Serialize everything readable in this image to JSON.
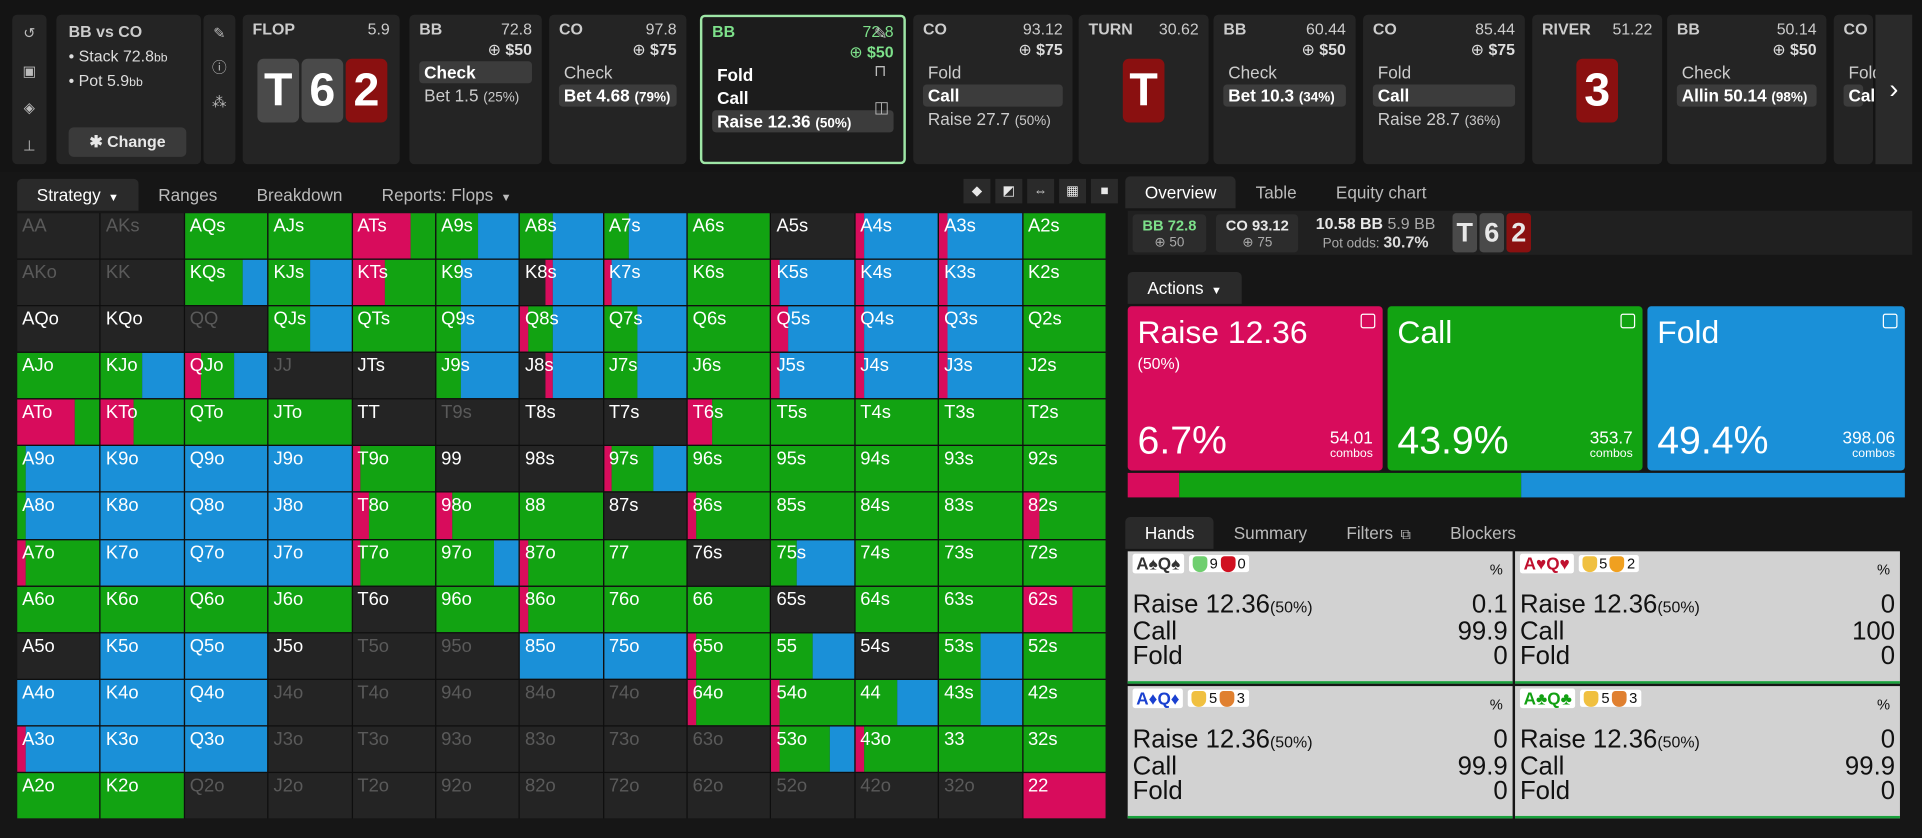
{
  "spot": {
    "title": "BB vs CO",
    "stack": "Stack 72.8",
    "pot": "Pot 5.9",
    "unit": "bb",
    "change": "Change"
  },
  "cards": [
    {
      "name": "FLOP",
      "val": "5.9"
    },
    {
      "name": "BB",
      "val": "72.8",
      "bet": "$50",
      "acts": [
        "Check",
        "Bet 1.5"
      ],
      "pcts": [
        "",
        "(25%)"
      ]
    },
    {
      "name": "CO",
      "val": "97.8",
      "bet": "$75",
      "acts": [
        "Check",
        "Bet 4.68"
      ],
      "pcts": [
        "",
        "(79%)"
      ]
    },
    {
      "name": "BB",
      "val": "72.8",
      "bet": "$50",
      "acts": [
        "Fold",
        "Call",
        "Raise 12.36"
      ],
      "pcts": [
        "",
        "",
        "(50%)"
      ]
    },
    {
      "name": "CO",
      "val": "93.12",
      "bet": "$75",
      "acts": [
        "Fold",
        "Call",
        "Raise 27.7"
      ],
      "pcts": [
        "",
        "",
        "(50%)"
      ]
    },
    {
      "name": "TURN",
      "val": "30.62"
    },
    {
      "name": "BB",
      "val": "60.44",
      "bet": "$50",
      "acts": [
        "Check",
        "Bet 10.3"
      ],
      "pcts": [
        "",
        "(34%)"
      ]
    },
    {
      "name": "CO",
      "val": "85.44",
      "bet": "$75",
      "acts": [
        "Fold",
        "Call",
        "Raise 28.7"
      ],
      "pcts": [
        "",
        "",
        "(36%)"
      ]
    },
    {
      "name": "RIVER",
      "val": "51.22"
    },
    {
      "name": "BB",
      "val": "50.14",
      "bet": "$50",
      "acts": [
        "Check",
        "Allin 50.14"
      ],
      "pcts": [
        "",
        "(98%)"
      ]
    },
    {
      "name": "CO",
      "acts": [
        "Fold",
        "Call"
      ]
    }
  ],
  "board": {
    "flop": [
      "T",
      "6",
      "2"
    ],
    "turn": "T",
    "river": "3"
  },
  "left_tabs": [
    "Strategy",
    "Ranges",
    "Breakdown",
    "Reports: Flops"
  ],
  "right_tabs": [
    "Overview",
    "Table",
    "Equity chart"
  ],
  "overview": {
    "bb": "BB 72.8",
    "bb_sub": "50",
    "co": "CO 93.12",
    "co_sub": "75",
    "pot_bb": "10.58 BB",
    "pot_small": "5.9 BB",
    "pot_odds_lbl": "Pot odds:",
    "pot_odds": "30.7%"
  },
  "actions_label": "Actions",
  "actions": [
    {
      "name": "Raise 12.36",
      "sub": "(50%)",
      "pct": "6.7%",
      "combos": "54.01",
      "color": "#d80c5c",
      "frac": 0.067
    },
    {
      "name": "Call",
      "sub": "",
      "pct": "43.9%",
      "combos": "353.7",
      "color": "#12a312",
      "frac": 0.439
    },
    {
      "name": "Fold",
      "sub": "",
      "pct": "49.4%",
      "combos": "398.06",
      "color": "#1a90d8",
      "frac": 0.494
    }
  ],
  "combos_word": "combos",
  "hand_tabs": [
    "Hands",
    "Summary",
    "Filters",
    "Blockers"
  ],
  "hands": [
    {
      "cards": "A♠Q♠",
      "c": "#333",
      "b1": "9",
      "b2": "0",
      "raise": "0.1",
      "call": "99.9",
      "fold": "0"
    },
    {
      "cards": "A♥Q♥",
      "c": "#c0102e",
      "b1": "5",
      "b2": "2",
      "raise": "0",
      "call": "100",
      "fold": "0"
    },
    {
      "cards": "A♦Q♦",
      "c": "#1a40d0",
      "b1": "5",
      "b2": "3",
      "raise": "0",
      "call": "99.9",
      "fold": "0"
    },
    {
      "cards": "A♣Q♣",
      "c": "#12a012",
      "b1": "5",
      "b2": "3",
      "raise": "0",
      "call": "99.9",
      "fold": "0"
    }
  ],
  "hand_labels": {
    "raise": "Raise 12.36",
    "raise_pct": "(50%)",
    "call": "Call",
    "fold": "Fold",
    "pct": "%"
  },
  "matrix": [
    [
      "AA:d",
      "AKs:d",
      "AQs:c",
      "AJs:c",
      "ATs:r7c3",
      "A9s:c5b5",
      "A8s:c4b6",
      "A7s:c3b7",
      "A6s:c",
      "A5s:d",
      "A4s:r1b9",
      "A3s:r1b9",
      "A2s:c"
    ],
    [
      "AKo:d",
      "KK:d",
      "KQs:c7b3",
      "KJs:c5b5",
      "KTs:r4c6",
      "K9s:c3b7",
      "K8s:d3r1b6",
      "K7s:r1b9",
      "K6s:c",
      "K5s:r1b9",
      "K4s:r1b9",
      "K3s:r1b9",
      "K2s:c"
    ],
    [
      "AQo:d",
      "KQo:d",
      "QQ:d",
      "QJs:c5b5",
      "QTs:c",
      "Q9s:c3b7",
      "Q8s:r1c3b6",
      "Q7s:c4b6",
      "Q6s:c",
      "Q5s:r2b8",
      "Q4s:r1b9",
      "Q3s:r1b9",
      "Q2s:c"
    ],
    [
      "AJo:c",
      "KJo:c5b5",
      "QJo:r2c4b4",
      "JJ:d",
      "JTs:d",
      "J9s:c3b7",
      "J8s:d3r1b6",
      "J7s:c4b6",
      "J6s:c",
      "J5s:r1b9",
      "J4s:r1b9",
      "J3s:r1b9",
      "J2s:c"
    ],
    [
      "ATo:r7c3",
      "KTo:r4c6",
      "QTo:c",
      "JTo:c",
      "TT:d",
      "T9s:d",
      "T8s:d",
      "T7s:d",
      "T6s:r3c7",
      "T5s:c",
      "T4s:c",
      "T3s:c",
      "T2s:c"
    ],
    [
      "A9o:c1b9",
      "K9o:b",
      "Q9o:b",
      "J9o:b",
      "T9o:r1c9",
      "99:d",
      "98s:d",
      "97s:r1c5b4",
      "96s:c",
      "95s:c",
      "94s:c",
      "93s:c",
      "92s:c"
    ],
    [
      "A8o:c1b9",
      "K8o:b",
      "Q8o:b",
      "J8o:b",
      "T8o:r2c8",
      "98o:r2c8",
      "88:c",
      "87s:d",
      "86s:r1c9",
      "85s:c",
      "84s:c",
      "83s:c",
      "82s:r2c8"
    ],
    [
      "A7o:r1c9",
      "K7o:b",
      "Q7o:b",
      "J7o:b",
      "T7o:r1c9",
      "97o:c7b3",
      "87o:r1c9",
      "77:c",
      "76s:d",
      "75s:c3b7",
      "74s:c",
      "73s:c",
      "72s:c"
    ],
    [
      "A6o:c",
      "K6o:c",
      "Q6o:c",
      "J6o:c",
      "T6o:d",
      "96o:c",
      "86o:r1c9",
      "76o:c",
      "66:c",
      "65s:d",
      "64s:c",
      "63s:c",
      "62s:r6c4"
    ],
    [
      "A5o:d",
      "K5o:b",
      "Q5o:b",
      "J5o:d",
      "T5o:d",
      "95o:d",
      "85o:b",
      "75o:b",
      "65o:r1c9",
      "55:c5b5",
      "54s:d",
      "53s:c5b5",
      "52s:c"
    ],
    [
      "A4o:b",
      "K4o:b",
      "Q4o:b",
      "J4o:d",
      "T4o:d",
      "94o:d",
      "84o:d",
      "74o:d",
      "64o:r1c9",
      "54o:r1c9",
      "44:c5b5",
      "43s:c5b5",
      "42s:c"
    ],
    [
      "A3o:r1b9",
      "K3o:b",
      "Q3o:b",
      "J3o:d",
      "T3o:d",
      "93o:d",
      "83o:d",
      "73o:d",
      "63o:d",
      "53o:r1c6b3",
      "43o:r1c9",
      "33:c",
      "32s:c"
    ],
    [
      "A2o:c",
      "K2o:c",
      "Q2o:d",
      "J2o:d",
      "T2o:d",
      "92o:d",
      "82o:d",
      "72o:d",
      "62o:d",
      "52o:d",
      "42o:d",
      "32o:d",
      "22:r"
    ]
  ],
  "colors": {
    "raise": "#d80c5c",
    "call": "#12a312",
    "fold": "#1a90d8",
    "empty": "#242424"
  }
}
